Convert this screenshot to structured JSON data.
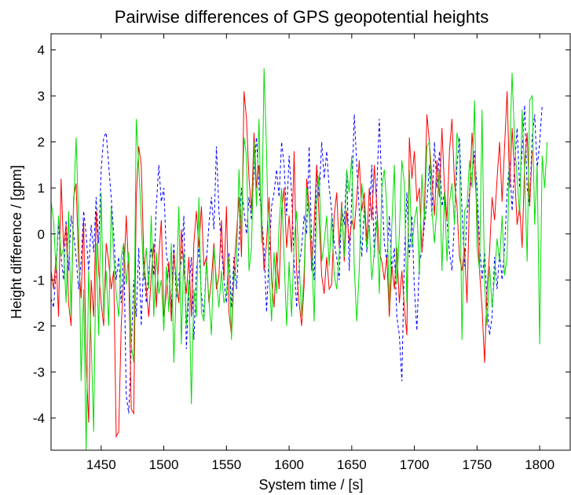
{
  "chart_data": {
    "type": "line",
    "title": "Pairwise differences of GPS geopotential heights",
    "xlabel": "System time / [s]",
    "ylabel": "Height difference / [gpm]",
    "xlim": [
      1410,
      1825
    ],
    "ylim": [
      -4.7,
      4.35
    ],
    "xticks": [
      1450,
      1500,
      1550,
      1600,
      1650,
      1700,
      1750,
      1800
    ],
    "yticks": [
      -4,
      -3,
      -2,
      -1,
      0,
      1,
      2,
      3,
      4
    ],
    "grid": false,
    "legend": "none",
    "series": [
      {
        "color": "#0000ff",
        "style": "dashed",
        "x_start": 1410,
        "x_step": 2,
        "values": [
          -1.4,
          -1.6,
          -0.8,
          0.2,
          -0.5,
          -1.0,
          0.3,
          -0.8,
          0.4,
          0.0,
          -0.5,
          -1.2,
          -0.6,
          0.5,
          0.0,
          -0.8,
          0.2,
          -0.4,
          0.8,
          -0.2,
          1.4,
          2.1,
          2.2,
          1.5,
          0.8,
          0.0,
          -1.0,
          -0.5,
          -1.5,
          -0.2,
          -3.5,
          -3.9,
          -2.5,
          -1.0,
          -1.8,
          -0.3,
          -2.0,
          -0.5,
          -1.5,
          -0.8,
          -0.3,
          -0.9,
          0.6,
          1.5,
          0.7,
          1.0,
          -0.4,
          -0.8,
          -1.6,
          -0.2,
          -1.4,
          -0.9,
          -0.6,
          0.4,
          -2.5,
          -1.2,
          -0.5,
          -2.3,
          -0.8,
          -0.3,
          -1.3,
          -1.8,
          -0.6,
          0.2,
          0.8,
          0.1,
          1.9,
          0.5,
          -0.3,
          -1.0,
          -1.5,
          -0.4,
          -1.6,
          -0.5,
          -1.2,
          -0.2,
          1.0,
          0.5,
          0.0,
          0.8,
          0.3,
          1.4,
          2.1,
          1.0,
          0.4,
          -0.3,
          -1.7,
          -0.5,
          0.6,
          0.9,
          1.4,
          0.8,
          2.0,
          1.5,
          0.4,
          1.7,
          0.9,
          -0.6,
          -1.6,
          -0.7,
          -0.3,
          0.4,
          0.0,
          1.9,
          -0.2,
          -1.0,
          1.5,
          0.8,
          2.0,
          1.2,
          1.8,
          1.0,
          0.5,
          -0.2,
          -0.5,
          -1.0,
          0.6,
          0.2,
          1.4,
          -0.8,
          0.8,
          2.6,
          1.5,
          0.5,
          -0.5,
          0.6,
          -0.4,
          0.3,
          1.5,
          -0.5,
          1.0,
          2.5,
          1.0,
          -0.2,
          -0.6,
          0.4,
          -0.8,
          -0.3,
          -1.8,
          -2.2,
          -3.2,
          -0.5,
          0.9,
          -0.5,
          0.4,
          -1.2,
          -2.1,
          -0.6,
          -0.4,
          0.2,
          0.7,
          1.5,
          0.4,
          2.0,
          1.0,
          1.8,
          0.6,
          0.9,
          0.3,
          -0.4,
          -0.8,
          0.3,
          1.5,
          2.1,
          0.5,
          -0.7,
          0.4,
          0.9,
          1.3,
          1.8,
          1.0,
          -0.2,
          -1.0,
          -0.4,
          -1.5,
          -2.2,
          -1.8,
          -0.5,
          -1.2,
          -0.4,
          -1.0,
          -0.3,
          0.9,
          1.6,
          0.5,
          1.5,
          2.3,
          1.0,
          1.8,
          2.8,
          1.0,
          0.6,
          2.1,
          2.6,
          1.4,
          2.0,
          2.8
        ]
      },
      {
        "color": "#ff0000",
        "style": "solid",
        "x_start": 1410,
        "x_step": 2,
        "values": [
          -0.8,
          -1.2,
          -0.5,
          -1.8,
          1.2,
          -0.3,
          0.2,
          -1.5,
          -2.0,
          0.8,
          1.1,
          -0.6,
          -1.4,
          0.3,
          -2.8,
          -4.1,
          -1.0,
          -1.8,
          0.5,
          -0.8,
          -1.5,
          -2.0,
          -0.2,
          -0.6,
          -1.2,
          -0.8,
          -4.4,
          -4.3,
          -2.0,
          -1.0,
          0.4,
          -0.8,
          -3.8,
          -3.9,
          0.8,
          1.9,
          1.5,
          -0.5,
          -1.2,
          -1.8,
          -0.9,
          -0.2,
          -1.6,
          -0.5,
          0.3,
          -1.8,
          -1.3,
          -0.6,
          -1.9,
          -0.4,
          -1.1,
          -1.5,
          0.1,
          -0.8,
          -1.3,
          -0.5,
          -1.8,
          -0.2,
          0.5,
          -0.3,
          0.6,
          -0.7,
          -0.5,
          -1.5,
          -1.0,
          -0.2,
          -1.2,
          -0.9,
          0.3,
          -1.0,
          0.6,
          -1.7,
          -2.2,
          -0.8,
          0.0,
          0.8,
          -0.5,
          3.1,
          2.5,
          1.2,
          0.5,
          2.2,
          1.0,
          1.5,
          0.4,
          -0.8,
          -0.2,
          0.8,
          -1.0,
          -1.6,
          -0.4,
          -1.2,
          0.5,
          1.0,
          -0.3,
          0.4,
          -0.4,
          1.8,
          -0.8,
          -1.5,
          -2.0,
          -1.1,
          1.2,
          0.6,
          -0.8,
          0.2,
          1.5,
          0.3,
          -0.9,
          -1.3,
          -0.5,
          -1.2,
          -1.1,
          0.4,
          0.9,
          -0.3,
          0.7,
          -0.6,
          0.5,
          -0.2,
          0.3,
          0.1,
          0.8,
          1.6,
          0.5,
          0.9,
          -0.2,
          1.0,
          0.3,
          1.5,
          0.6,
          -0.4,
          -0.6,
          -1.0,
          -0.5,
          -1.8,
          -0.7,
          -1.2,
          -0.3,
          -1.5,
          -0.8,
          -1.6,
          -2.2,
          2.1,
          1.2,
          1.8,
          0.7,
          1.0,
          -0.4,
          0.5,
          2.6,
          2.0,
          1.2,
          0.4,
          1.6,
          0.8,
          2.3,
          1.0,
          0.3,
          1.8,
          2.5,
          1.1,
          0.6,
          -0.5,
          -0.8,
          -0.3,
          -1.5,
          0.8,
          2.2,
          1.4,
          0.5,
          -0.8,
          -1.6,
          -2.8,
          -1.2,
          -0.4,
          0.8,
          0.3,
          1.2,
          2.0,
          0.7,
          1.9,
          3.1,
          1.0,
          2.3,
          1.3,
          0.2,
          0.6,
          -0.3,
          1.5,
          2.2,
          0.6,
          1.8
        ]
      },
      {
        "color": "#00dd00",
        "style": "solid",
        "x_start": 1410,
        "x_step": 2,
        "values": [
          0.7,
          0.3,
          -0.8,
          0.4,
          -0.5,
          -0.3,
          -1.5,
          0.5,
          -1.8,
          0.6,
          2.1,
          0.3,
          -3.2,
          -1.2,
          -4.7,
          -0.8,
          -2.3,
          -4.3,
          -0.2,
          -2.2,
          0.9,
          -1.8,
          -0.8,
          -2.0,
          0.6,
          -0.5,
          -1.3,
          -1.8,
          -0.5,
          -0.2,
          -1.1,
          -0.4,
          -2.4,
          -2.8,
          2.5,
          1.5,
          0.3,
          -1.0,
          -0.3,
          -1.2,
          0.4,
          -1.8,
          -0.4,
          -1.3,
          -1.0,
          -2.1,
          -0.7,
          -1.7,
          -0.2,
          -2.8,
          -1.1,
          0.6,
          -2.4,
          -0.4,
          -2.0,
          -1.0,
          -3.7,
          -1.2,
          -1.8,
          0.8,
          -1.7,
          -1.9,
          -0.6,
          -1.4,
          -2.2,
          -0.3,
          -1.0,
          -1.6,
          -0.8,
          -1.5,
          -1.3,
          -0.5,
          -2.3,
          -1.0,
          -0.6,
          1.4,
          0.0,
          2.1,
          1.7,
          -0.8,
          -0.3,
          2.0,
          0.6,
          2.5,
          -0.2,
          3.6,
          1.8,
          -0.8,
          -1.9,
          -0.4,
          -1.3,
          0.2,
          1.0,
          -0.5,
          -2.0,
          -0.6,
          -1.8,
          -0.2,
          0.5,
          -0.6,
          -1.8,
          -0.8,
          1.0,
          0.4,
          -0.3,
          -1.9,
          0.7,
          1.3,
          -0.6,
          -0.2,
          0.4,
          -0.7,
          0.4,
          -0.9,
          -1.2,
          -0.4,
          0.6,
          -0.5,
          1.4,
          0.9,
          1.7,
          -0.7,
          -1.9,
          -0.8,
          1.1,
          0.5,
          -0.3,
          0.2,
          -1.0,
          -0.4,
          0.3,
          -1.3,
          1.0,
          1.4,
          0.6,
          -1.6,
          0.2,
          1.5,
          -1.1,
          0.0,
          1.6,
          1.1,
          -1.5,
          1.4,
          -0.3,
          0.3,
          0.6,
          -0.9,
          1.3,
          0.3,
          1.9,
          2.0,
          0.5,
          -0.2,
          0.6,
          1.4,
          -0.8,
          0.9,
          -0.6,
          0.7,
          1.1,
          0.2,
          2.2,
          1.9,
          -2.3,
          0.5,
          0.6,
          1.6,
          1.0,
          2.9,
          -0.3,
          -0.8,
          2.7,
          -1.1,
          -2.0,
          -0.7,
          -1.6,
          -0.9,
          -0.1,
          -0.6,
          0.4,
          -0.9,
          -0.5,
          1.8,
          3.5,
          2.0,
          1.2,
          0.4,
          2.7,
          1.3,
          -0.6,
          2.9,
          3.0,
          0.2,
          1.5,
          -2.4,
          1.7,
          1.0,
          2.0
        ]
      }
    ]
  }
}
